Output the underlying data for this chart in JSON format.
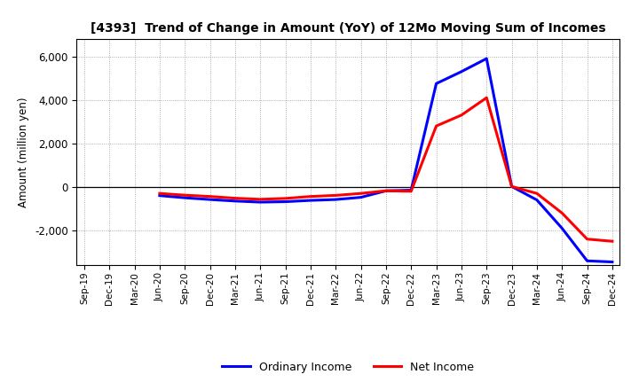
{
  "title": "[4393]  Trend of Change in Amount (YoY) of 12Mo Moving Sum of Incomes",
  "ylabel": "Amount (million yen)",
  "background_color": "#ffffff",
  "grid_color": "#999999",
  "x_labels": [
    "Sep-19",
    "Dec-19",
    "Mar-20",
    "Jun-20",
    "Sep-20",
    "Dec-20",
    "Mar-21",
    "Jun-21",
    "Sep-21",
    "Dec-21",
    "Mar-22",
    "Jun-22",
    "Sep-22",
    "Dec-22",
    "Mar-23",
    "Jun-23",
    "Sep-23",
    "Dec-23",
    "Mar-24",
    "Jun-24",
    "Sep-24",
    "Dec-24"
  ],
  "ordinary_income": [
    null,
    null,
    null,
    -400,
    -500,
    -580,
    -650,
    -700,
    -680,
    -620,
    -580,
    -480,
    -180,
    -150,
    4750,
    5300,
    5900,
    20,
    -600,
    -1900,
    -3400,
    -3450
  ],
  "net_income": [
    null,
    null,
    null,
    -300,
    -380,
    -440,
    -520,
    -570,
    -530,
    -440,
    -390,
    -300,
    -180,
    -200,
    2800,
    3300,
    4100,
    20,
    -300,
    -1200,
    -2400,
    -2500
  ],
  "ylim": [
    -3600,
    6800
  ],
  "yticks": [
    -2000,
    0,
    2000,
    4000,
    6000
  ],
  "ordinary_color": "#0000ff",
  "net_color": "#ff0000",
  "line_width": 2.2
}
